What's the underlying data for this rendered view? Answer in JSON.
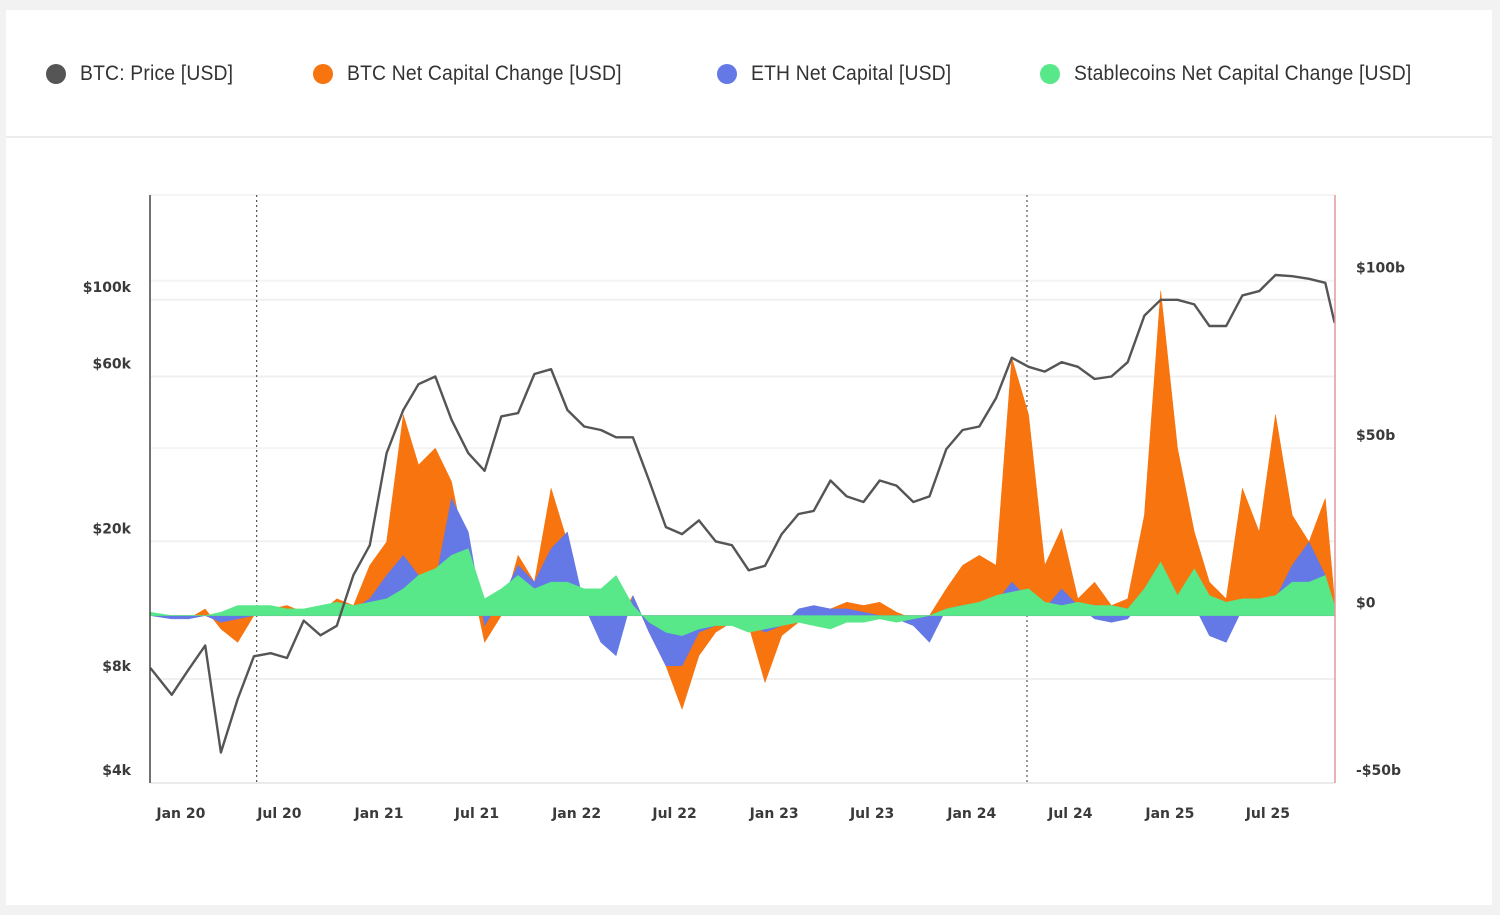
{
  "legend": [
    {
      "label": "BTC: Price [USD]",
      "color": "#555555"
    },
    {
      "label": "BTC Net Capital Change [USD]",
      "color": "#f7740f"
    },
    {
      "label": "ETH Net Capital [USD]",
      "color": "#6478e6"
    },
    {
      "label": "Stablecoins Net Capital Change [USD]",
      "color": "#58e88a"
    }
  ],
  "chart_data": {
    "type": "area",
    "title": "",
    "x_range": [
      "2019-11-05",
      "2025-11-02"
    ],
    "x_ticks": [
      {
        "date": "2020-01-01",
        "label": "Jan 20"
      },
      {
        "date": "2020-07-01",
        "label": "Jul 20"
      },
      {
        "date": "2021-01-01",
        "label": "Jan 21"
      },
      {
        "date": "2021-07-01",
        "label": "Jul 21"
      },
      {
        "date": "2022-01-01",
        "label": "Jan 22"
      },
      {
        "date": "2022-07-01",
        "label": "Jul 22"
      },
      {
        "date": "2023-01-01",
        "label": "Jan 23"
      },
      {
        "date": "2023-07-01",
        "label": "Jul 23"
      },
      {
        "date": "2024-01-01",
        "label": "Jan 24"
      },
      {
        "date": "2024-07-01",
        "label": "Jul 24"
      },
      {
        "date": "2025-01-01",
        "label": "Jan 25"
      },
      {
        "date": "2025-07-01",
        "label": "Jul 25"
      }
    ],
    "left_axis": {
      "scale": "log",
      "unit": "USD",
      "range": [
        4000,
        201000
      ],
      "ticks": [
        {
          "value": 4000,
          "label": "$4k"
        },
        {
          "value": 8000,
          "label": "$8k"
        },
        {
          "value": 20000,
          "label": "$20k"
        },
        {
          "value": 60000,
          "label": "$60k"
        },
        {
          "value": 100000,
          "label": "$100k"
        }
      ]
    },
    "right_axis": {
      "scale": "linear",
      "unit": "USD billions",
      "range": [
        -50,
        125.6
      ],
      "ticks": [
        {
          "value": -50,
          "label": "-$50b"
        },
        {
          "value": 0,
          "label": "$0"
        },
        {
          "value": 50,
          "label": "$50b"
        },
        {
          "value": 100,
          "label": "$100b"
        }
      ]
    },
    "reference_lines": [
      "2020-05-20",
      "2024-04-12"
    ],
    "grid": true,
    "legend_position": "top",
    "x": [
      "2019-11-06",
      "2019-12-15",
      "2020-01-15",
      "2020-02-15",
      "2020-03-15",
      "2020-04-15",
      "2020-05-15",
      "2020-06-15",
      "2020-07-15",
      "2020-08-15",
      "2020-09-15",
      "2020-10-15",
      "2020-11-15",
      "2020-12-15",
      "2021-01-15",
      "2021-02-15",
      "2021-03-15",
      "2021-04-15",
      "2021-05-15",
      "2021-06-15",
      "2021-07-15",
      "2021-08-15",
      "2021-09-15",
      "2021-10-15",
      "2021-11-15",
      "2021-12-15",
      "2022-01-15",
      "2022-02-15",
      "2022-03-15",
      "2022-04-15",
      "2022-05-15",
      "2022-06-15",
      "2022-07-15",
      "2022-08-15",
      "2022-09-15",
      "2022-10-15",
      "2022-11-15",
      "2022-12-15",
      "2023-01-15",
      "2023-02-15",
      "2023-03-15",
      "2023-04-15",
      "2023-05-15",
      "2023-06-15",
      "2023-07-15",
      "2023-08-15",
      "2023-09-15",
      "2023-10-15",
      "2023-11-15",
      "2023-12-15",
      "2024-01-15",
      "2024-02-15",
      "2024-03-15",
      "2024-04-15",
      "2024-05-15",
      "2024-06-15",
      "2024-07-15",
      "2024-08-15",
      "2024-09-15",
      "2024-10-15",
      "2024-11-15",
      "2024-12-15",
      "2025-01-15",
      "2025-02-15",
      "2025-03-15",
      "2025-04-15",
      "2025-05-15",
      "2025-06-15",
      "2025-07-15",
      "2025-08-15",
      "2025-09-15",
      "2025-10-15",
      "2025-11-01"
    ],
    "series": [
      {
        "name": "BTC Net Capital Change [USD]",
        "axis": "right",
        "kind": "area",
        "color": "#f7740f",
        "values": [
          0,
          -0.5,
          -1,
          2,
          -4,
          -8,
          0,
          2,
          3,
          1,
          1,
          5,
          3,
          15,
          22,
          60,
          45,
          50,
          40,
          15,
          -8,
          0,
          18,
          10,
          38,
          22,
          3,
          0,
          -3,
          6,
          -5,
          -15,
          -28,
          -12,
          -5,
          -2,
          -3,
          -20,
          -6,
          -2,
          0,
          2,
          4,
          3,
          4,
          1,
          -1,
          0,
          8,
          15,
          18,
          15,
          77,
          60,
          15,
          26,
          5,
          10,
          3,
          5,
          30,
          97,
          50,
          25,
          10,
          5,
          38,
          25,
          60,
          30,
          22,
          35,
          5
        ]
      },
      {
        "name": "ETH Net Capital [USD]",
        "axis": "right",
        "kind": "area",
        "color": "#6478e6",
        "values": [
          0,
          -1,
          -1,
          0,
          -2,
          -1,
          0,
          1,
          1,
          1,
          1,
          1,
          2,
          5,
          12,
          18,
          12,
          10,
          35,
          25,
          -3,
          5,
          15,
          10,
          20,
          25,
          3,
          -8,
          -12,
          6,
          -5,
          -15,
          -15,
          -5,
          -3,
          -2,
          -2,
          -5,
          -3,
          2,
          3,
          2,
          2,
          1,
          0,
          -1,
          -3,
          -8,
          2,
          3,
          3,
          4,
          10,
          5,
          2,
          8,
          3,
          -1,
          -2,
          -1,
          5,
          15,
          5,
          3,
          -6,
          -8,
          2,
          3,
          5,
          15,
          22,
          12,
          0
        ]
      },
      {
        "name": "Stablecoins Net Capital Change [USD]",
        "axis": "right",
        "kind": "area",
        "color": "#58e88a",
        "values": [
          1,
          0,
          0,
          0,
          1,
          3,
          3,
          3,
          2,
          2,
          3,
          4,
          3,
          4,
          5,
          8,
          12,
          14,
          18,
          20,
          5,
          8,
          12,
          8,
          10,
          10,
          8,
          8,
          12,
          3,
          -2,
          -5,
          -6,
          -4,
          -3,
          -3,
          -5,
          -4,
          -3,
          -2,
          -3,
          -4,
          -2,
          -2,
          -1,
          -2,
          -1,
          0,
          2,
          3,
          4,
          6,
          7,
          8,
          4,
          3,
          4,
          3,
          3,
          2,
          8,
          16,
          6,
          14,
          6,
          4,
          5,
          5,
          6,
          10,
          10,
          12,
          3
        ]
      },
      {
        "name": "BTC: Price [USD]",
        "axis": "left",
        "kind": "line",
        "color": "#555555",
        "values": [
          8600,
          7200,
          8500,
          10000,
          4900,
          7000,
          9300,
          9500,
          9200,
          11800,
          10700,
          11400,
          16000,
          19500,
          36000,
          48000,
          57000,
          60000,
          45000,
          36000,
          32000,
          46000,
          47000,
          61000,
          63000,
          48000,
          43000,
          42000,
          40000,
          40000,
          30000,
          22000,
          21000,
          23000,
          20000,
          19500,
          16500,
          17000,
          21000,
          24000,
          24500,
          30000,
          27000,
          26000,
          30000,
          29000,
          26000,
          27000,
          37000,
          42000,
          43000,
          52000,
          68000,
          64000,
          62000,
          66000,
          64000,
          59000,
          60000,
          66000,
          90000,
          100000,
          100000,
          97000,
          84000,
          84000,
          103000,
          106000,
          118000,
          117000,
          115000,
          112000,
          86000
        ]
      }
    ]
  }
}
